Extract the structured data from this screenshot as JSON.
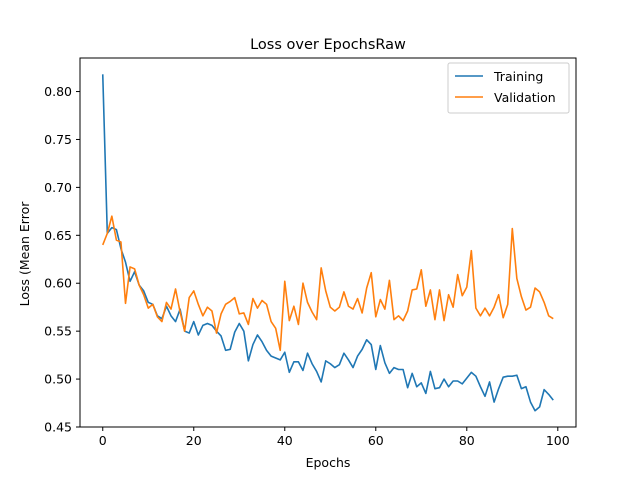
{
  "chart_data": {
    "type": "line",
    "title": "Loss over EpochsRaw",
    "xlabel": "Epochs",
    "ylabel": "Loss (Mean Error",
    "xlim": [
      -5,
      104
    ],
    "ylim": [
      0.45,
      0.835
    ],
    "xticks": [
      0,
      20,
      40,
      60,
      80,
      100
    ],
    "yticks": [
      0.45,
      0.5,
      0.55,
      0.6,
      0.65,
      0.7,
      0.75,
      0.8
    ],
    "legend_position": "top-right",
    "grid": false,
    "series": [
      {
        "name": "Training",
        "color": "#1f77b4",
        "values": [
          0.818,
          0.652,
          0.658,
          0.656,
          0.636,
          0.622,
          0.602,
          0.612,
          0.598,
          0.592,
          0.58,
          0.578,
          0.566,
          0.563,
          0.576,
          0.566,
          0.56,
          0.573,
          0.55,
          0.548,
          0.56,
          0.546,
          0.556,
          0.558,
          0.556,
          0.55,
          0.545,
          0.53,
          0.531,
          0.549,
          0.558,
          0.55,
          0.519,
          0.536,
          0.546,
          0.539,
          0.53,
          0.524,
          0.522,
          0.52,
          0.528,
          0.507,
          0.518,
          0.518,
          0.509,
          0.527,
          0.516,
          0.508,
          0.497,
          0.519,
          0.516,
          0.512,
          0.515,
          0.527,
          0.52,
          0.512,
          0.524,
          0.531,
          0.541,
          0.536,
          0.51,
          0.535,
          0.517,
          0.506,
          0.512,
          0.51,
          0.51,
          0.491,
          0.506,
          0.492,
          0.496,
          0.485,
          0.508,
          0.49,
          0.491,
          0.5,
          0.492,
          0.498,
          0.498,
          0.495,
          0.501,
          0.507,
          0.503,
          0.492,
          0.482,
          0.497,
          0.476,
          0.49,
          0.502,
          0.503,
          0.503,
          0.504,
          0.49,
          0.492,
          0.476,
          0.467,
          0.471,
          0.489,
          0.484,
          0.478
        ]
      },
      {
        "name": "Validation",
        "color": "#ff7f0e",
        "values": [
          0.64,
          0.652,
          0.67,
          0.645,
          0.643,
          0.579,
          0.617,
          0.615,
          0.598,
          0.588,
          0.574,
          0.578,
          0.565,
          0.56,
          0.58,
          0.573,
          0.594,
          0.57,
          0.55,
          0.585,
          0.592,
          0.578,
          0.566,
          0.575,
          0.571,
          0.548,
          0.568,
          0.578,
          0.581,
          0.585,
          0.568,
          0.569,
          0.557,
          0.584,
          0.574,
          0.582,
          0.578,
          0.56,
          0.553,
          0.53,
          0.602,
          0.561,
          0.576,
          0.557,
          0.6,
          0.58,
          0.57,
          0.562,
          0.616,
          0.592,
          0.575,
          0.571,
          0.575,
          0.591,
          0.576,
          0.573,
          0.584,
          0.569,
          0.595,
          0.611,
          0.565,
          0.583,
          0.573,
          0.603,
          0.562,
          0.566,
          0.561,
          0.571,
          0.593,
          0.594,
          0.614,
          0.576,
          0.593,
          0.562,
          0.593,
          0.561,
          0.588,
          0.575,
          0.609,
          0.587,
          0.596,
          0.634,
          0.574,
          0.566,
          0.574,
          0.566,
          0.575,
          0.588,
          0.564,
          0.578,
          0.657,
          0.605,
          0.586,
          0.572,
          0.575,
          0.595,
          0.591,
          0.58,
          0.566,
          0.563
        ]
      }
    ]
  }
}
